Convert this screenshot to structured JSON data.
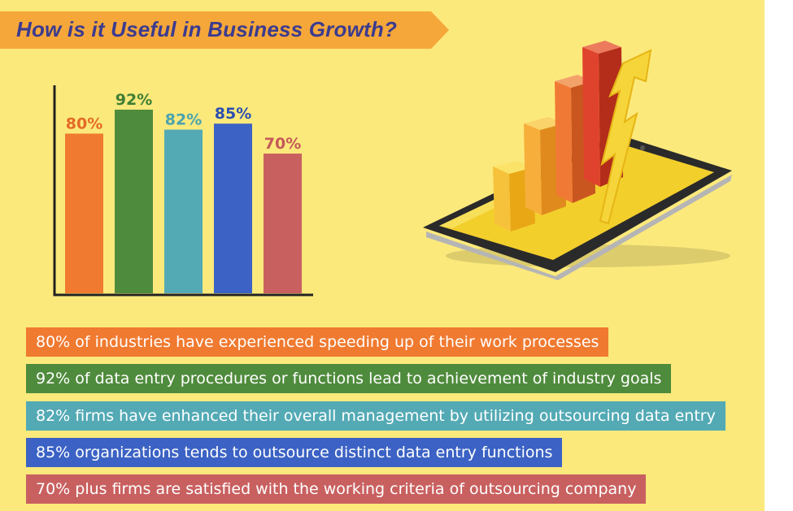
{
  "title": "How is it Useful in Business Growth?",
  "chart_data": {
    "type": "bar",
    "categories": [
      "",
      "",
      "",
      "",
      ""
    ],
    "values": [
      80,
      92,
      82,
      85,
      70
    ],
    "labels": [
      "80%",
      "92%",
      "82%",
      "85%",
      "70%"
    ],
    "colors": [
      "#f07a30",
      "#4f8b3c",
      "#53aab5",
      "#3b62c4",
      "#c96060"
    ],
    "label_colors": [
      "#e46a25",
      "#3f7f34",
      "#4aa3ae",
      "#2d4fb2",
      "#c45a5a"
    ],
    "ylim": [
      0,
      100
    ],
    "title": "",
    "xlabel": "",
    "ylabel": ""
  },
  "stats": [
    {
      "text": "80% of industries have experienced speeding up of their work processes",
      "color": "#f07a30"
    },
    {
      "text": "92% of data entry procedures or functions lead to achievement of industry goals",
      "color": "#4f8b3c"
    },
    {
      "text": "82% firms have enhanced their overall management by utilizing outsourcing data entry",
      "color": "#53aab5"
    },
    {
      "text": "85% organizations tends to outsource distinct data entry functions",
      "color": "#3b62c4"
    },
    {
      "text": "70% plus firms are satisfied with the working criteria of outsourcing company",
      "color": "#c96060"
    }
  ],
  "illustration": {
    "icon": "smartphone-growth-chart-icon",
    "accent": "#f5c518"
  }
}
